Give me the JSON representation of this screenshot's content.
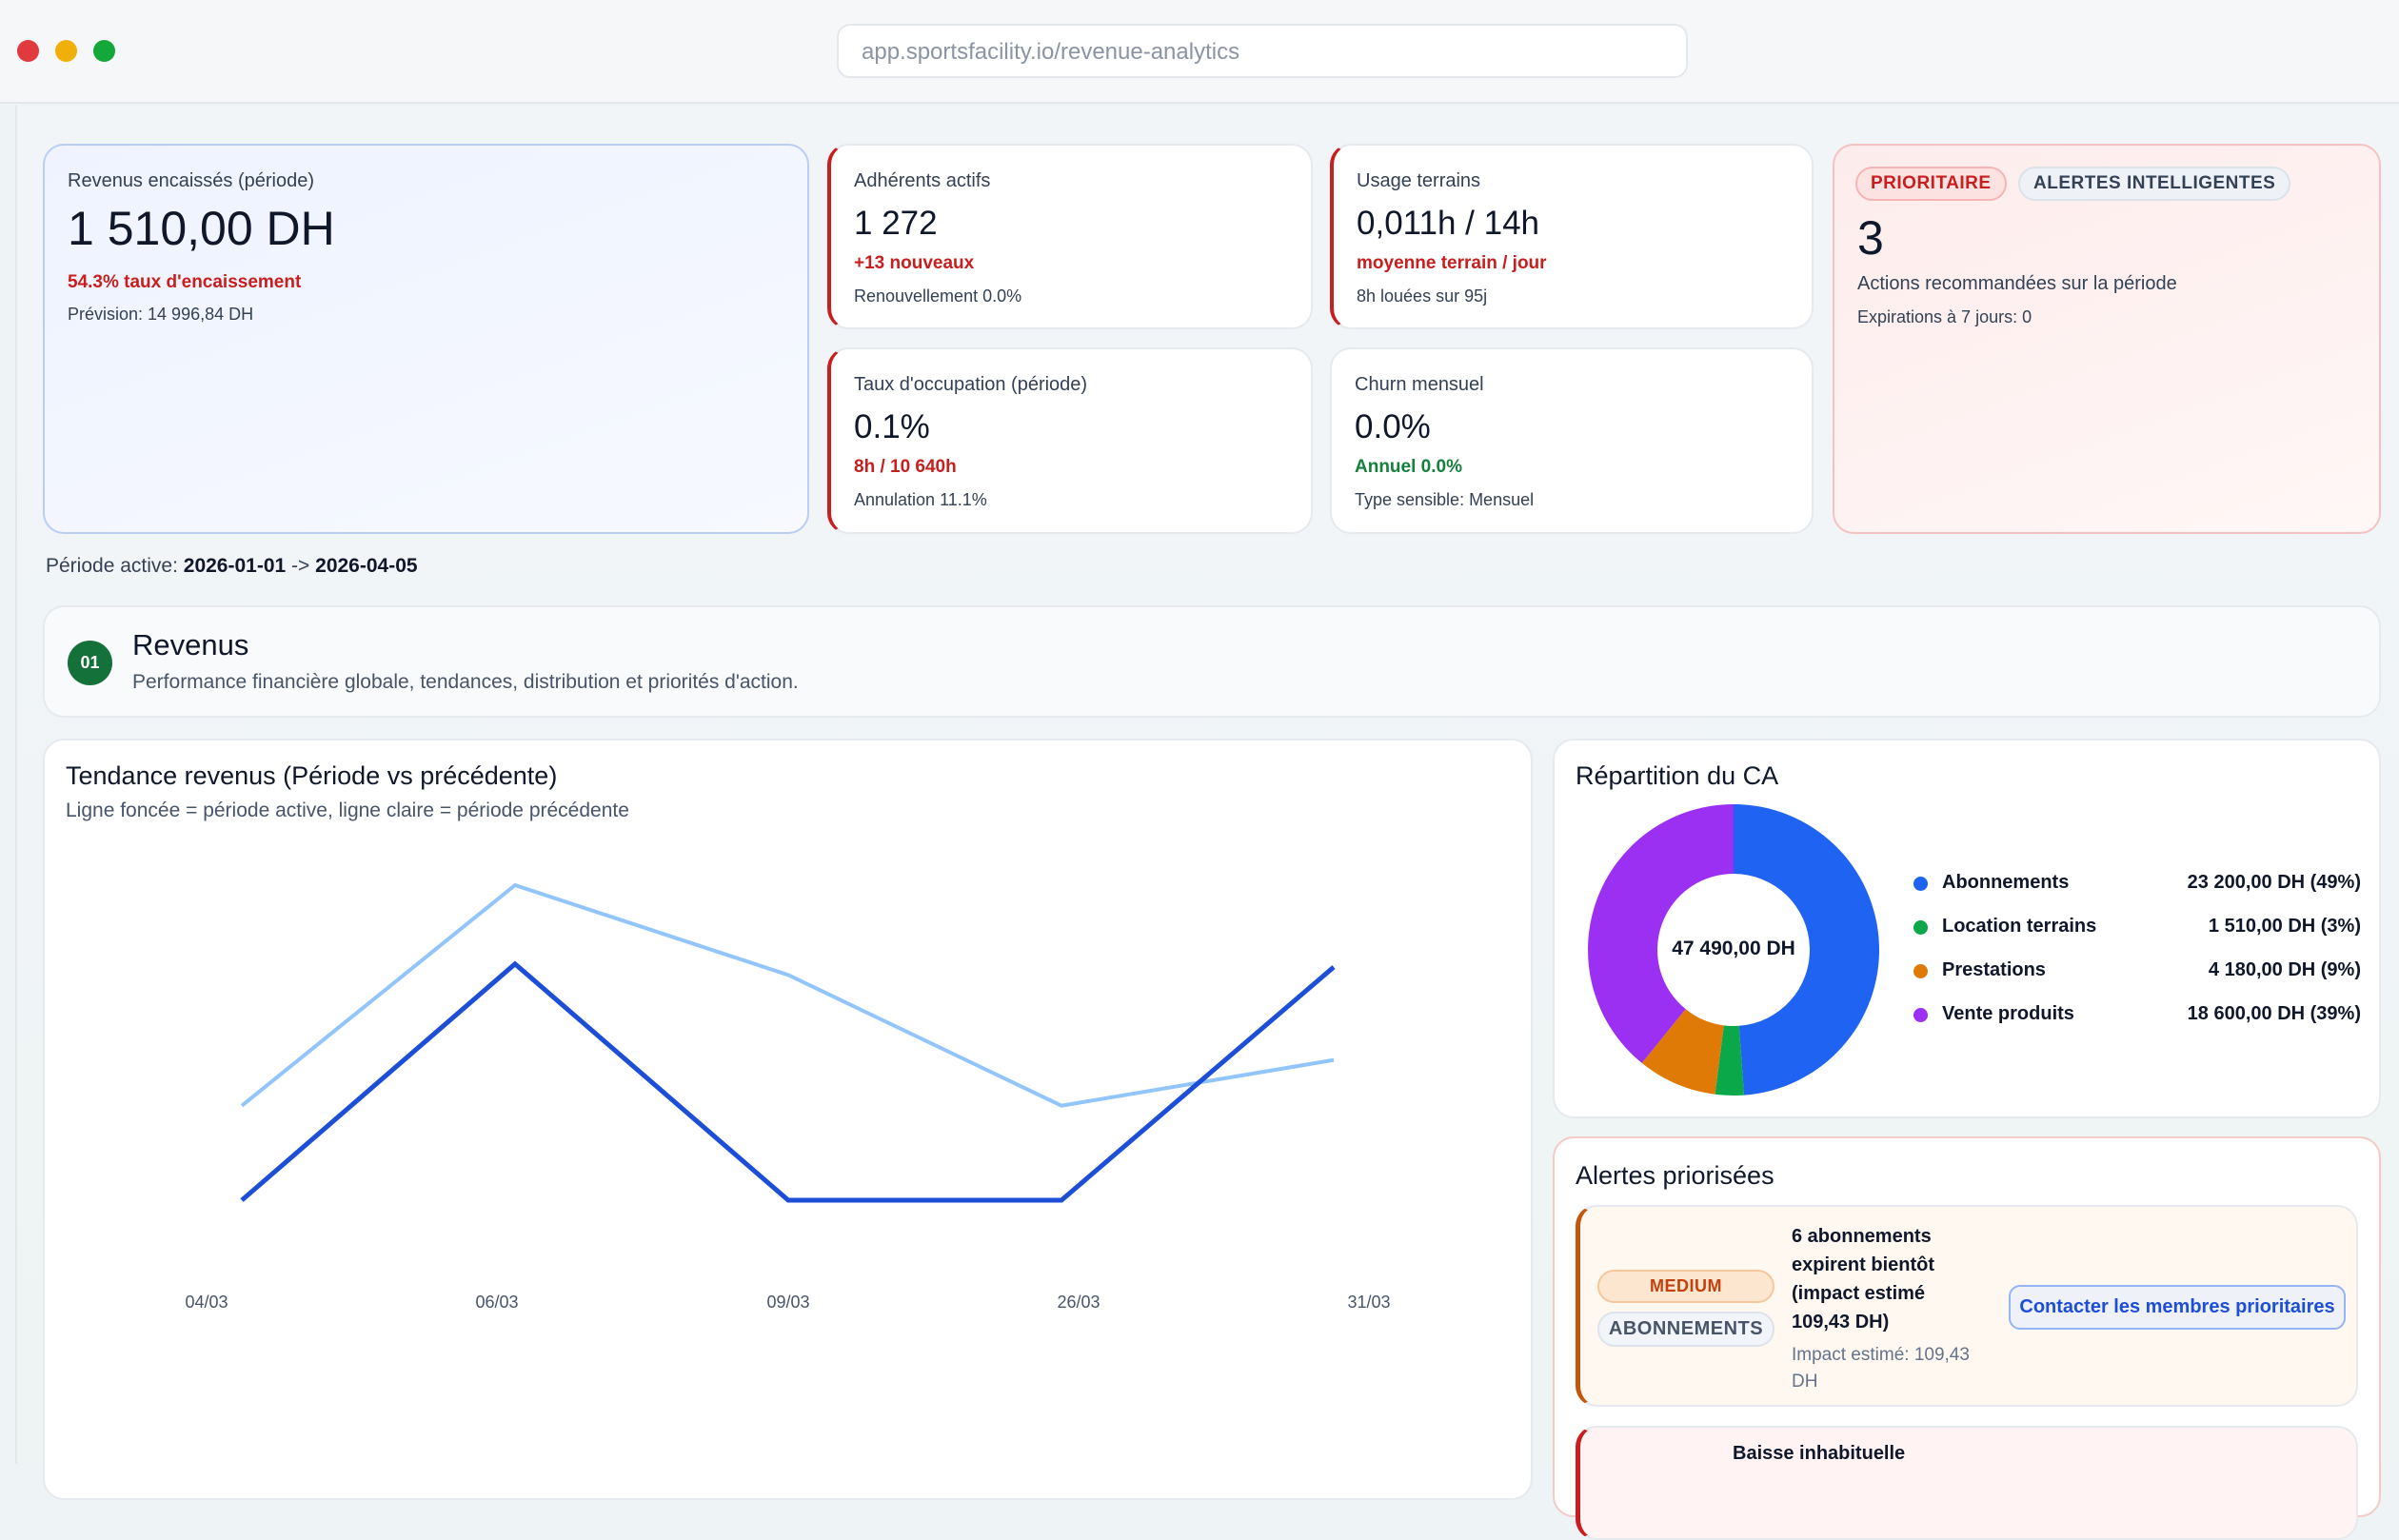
{
  "browser": {
    "url": "app.sportsfacility.io/revenue-analytics",
    "dots": [
      "#e0393e",
      "#f1b008",
      "#14a83b"
    ]
  },
  "kpis": {
    "revenue": {
      "label": "Revenus encaissés (période)",
      "value": "1 510,00 DH",
      "sub": "54.3% taux d'encaissement",
      "note": "Prévision: 14 996,84 DH"
    },
    "members": {
      "label": "Adhérents actifs",
      "value": "1 272",
      "sub": "+13 nouveaux",
      "note": "Renouvellement 0.0%"
    },
    "usage": {
      "label": "Usage terrains",
      "value": "0,011h / 14h",
      "sub": "moyenne terrain / jour",
      "note": "8h louées sur 95j"
    },
    "occupancy": {
      "label": "Taux d'occupation (période)",
      "value": "0.1%",
      "sub": "8h / 10 640h",
      "note": "Annulation 11.1%"
    },
    "churn": {
      "label": "Churn mensuel",
      "value": "0.0%",
      "sub": "Annuel 0.0%",
      "note": "Type sensible: Mensuel"
    },
    "alerts": {
      "badge_priority": "PRIORITAIRE",
      "badge_smart": "ALERTES INTELLIGENTES",
      "value": "3",
      "label": "Actions recommandées sur la période",
      "note": "Expirations à 7 jours: 0"
    }
  },
  "period": {
    "label": "Période active:",
    "start": "2026-01-01",
    "arrow": "->",
    "end": "2026-04-05"
  },
  "section": {
    "number": "01",
    "title": "Revenus",
    "subtitle": "Performance financière globale, tendances, distribution et priorités d'action."
  },
  "chart_data": [
    {
      "type": "line",
      "title": "Tendance revenus (Période vs précédente)",
      "subtitle": "Ligne foncée = période active, ligne claire = période précédente",
      "categories": [
        "04/03",
        "06/03",
        "09/03",
        "26/03",
        "31/03"
      ],
      "series": [
        {
          "values": [
            0,
            750,
            0,
            0,
            740
          ],
          "color": "#1d4ed8"
        },
        {
          "values": [
            300,
            1000,
            715,
            300,
            445
          ],
          "color": "#93c5fd"
        }
      ],
      "ylim": [
        0,
        1000
      ],
      "grid": false
    },
    {
      "type": "pie",
      "title": "Répartition du CA",
      "center_label": "47 490,00 DH",
      "slices": [
        {
          "name": "Abonnements",
          "value": 23200,
          "display": "23 200,00 DH (49%)",
          "color": "#1f63f2"
        },
        {
          "name": "Location terrains",
          "value": 1510,
          "display": "1 510,00 DH (3%)",
          "color": "#0ba84a"
        },
        {
          "name": "Prestations",
          "value": 4180,
          "display": "4 180,00 DH (9%)",
          "color": "#e07a06"
        },
        {
          "name": "Vente produits",
          "value": 18600,
          "display": "18 600,00 DH (39%)",
          "color": "#9b30f2"
        }
      ],
      "legend": "right"
    }
  ],
  "alerts_panel": {
    "title": "Alertes priorisées",
    "items": [
      {
        "severity": "MEDIUM",
        "category": "ABONNEMENTS",
        "title": "6 abonnements expirent bientôt (impact estimé 109,43 DH)",
        "impact": "Impact estimé: 109,43 DH",
        "action": "Contacter les membres prioritaires"
      },
      {
        "title": "Baisse inhabituelle"
      }
    ]
  }
}
